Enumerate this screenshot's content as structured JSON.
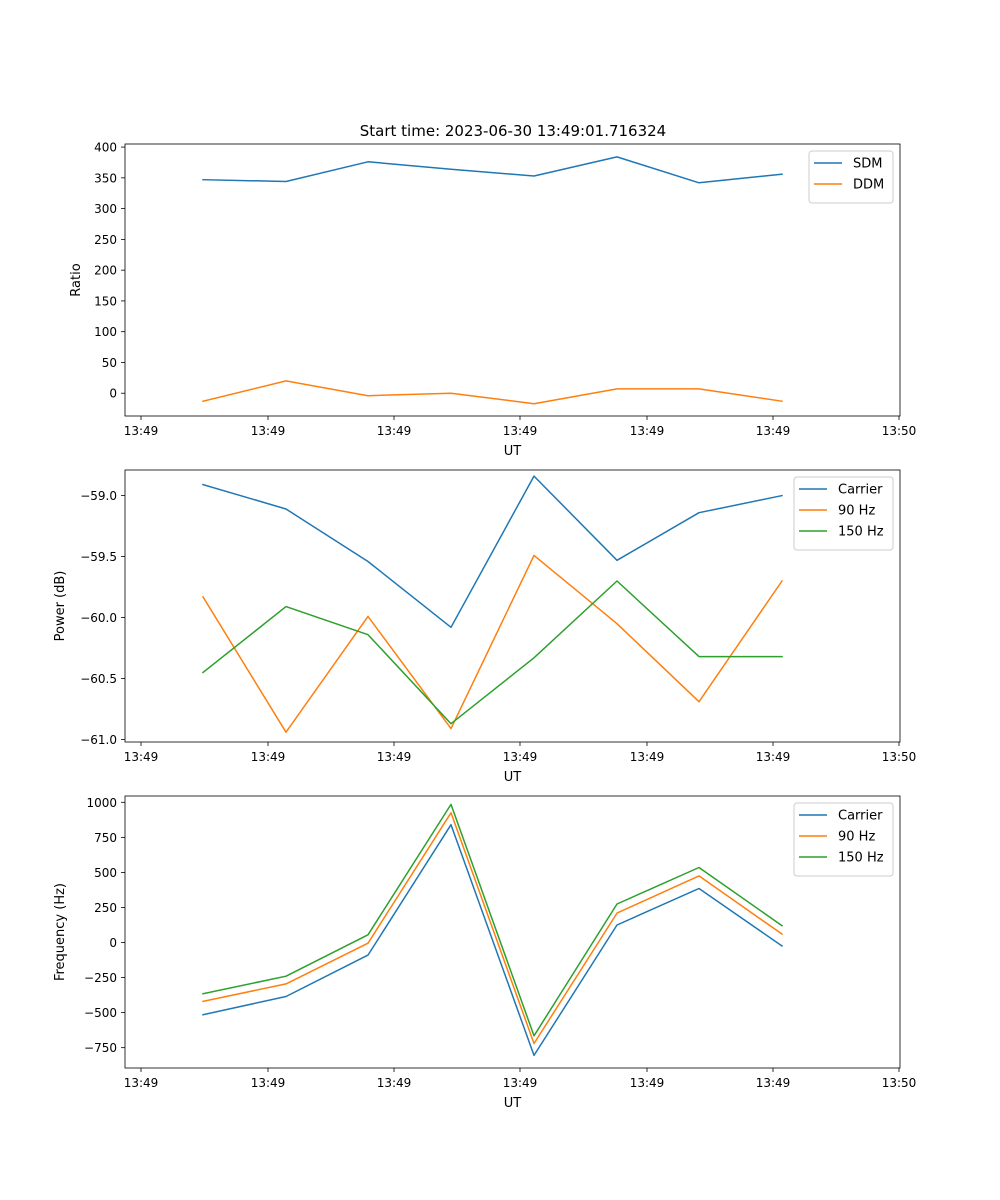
{
  "figure": {
    "title": "Start time: 2023-06-30 13:49:01.716324"
  },
  "chart_data": [
    {
      "type": "line",
      "title": "Start time: 2023-06-30 13:49:01.716324",
      "xlabel": "UT",
      "ylabel": "Ratio",
      "xticklabels": [
        "13:49",
        "13:49",
        "13:49",
        "13:49",
        "13:49",
        "13:49",
        "13:50"
      ],
      "yticks": [
        0,
        50,
        100,
        150,
        200,
        250,
        300,
        350,
        400
      ],
      "yticklabels": [
        "0",
        "50",
        "100",
        "150",
        "200",
        "250",
        "300",
        "350",
        "400"
      ],
      "ylim": [
        -37,
        405
      ],
      "legend": "top-right",
      "grid": false,
      "series": [
        {
          "name": "SDM",
          "color": "#1f77b4",
          "values": [
            347,
            344,
            376,
            364,
            353,
            384,
            342,
            356
          ]
        },
        {
          "name": "DDM",
          "color": "#ff7f0e",
          "values": [
            -13,
            20,
            -4,
            0,
            -17,
            7,
            7,
            -13
          ]
        }
      ]
    },
    {
      "type": "line",
      "xlabel": "UT",
      "ylabel": "Power (dB)",
      "xticklabels": [
        "13:49",
        "13:49",
        "13:49",
        "13:49",
        "13:49",
        "13:49",
        "13:50"
      ],
      "yticks": [
        -61.0,
        -60.5,
        -60.0,
        -59.5,
        -59.0
      ],
      "yticklabels": [
        "−61.0",
        "−60.5",
        "−60.0",
        "−59.5",
        "−59.0"
      ],
      "ylim": [
        -61.02,
        -58.79
      ],
      "legend": "top-right",
      "grid": false,
      "series": [
        {
          "name": "Carrier",
          "color": "#1f77b4",
          "values": [
            -58.91,
            -59.11,
            -59.54,
            -60.08,
            -58.84,
            -59.53,
            -59.14,
            -59.0
          ]
        },
        {
          "name": "90 Hz",
          "color": "#ff7f0e",
          "values": [
            -59.83,
            -60.94,
            -59.99,
            -60.91,
            -59.49,
            -60.05,
            -60.69,
            -59.7
          ]
        },
        {
          "name": "150 Hz",
          "color": "#2ca02c",
          "values": [
            -60.45,
            -59.91,
            -60.14,
            -60.87,
            -60.33,
            -59.7,
            -60.32,
            -60.32
          ]
        }
      ]
    },
    {
      "type": "line",
      "xlabel": "UT",
      "ylabel": "Frequency (Hz)",
      "xticklabels": [
        "13:49",
        "13:49",
        "13:49",
        "13:49",
        "13:49",
        "13:49",
        "13:50"
      ],
      "yticks": [
        -750,
        -500,
        -250,
        0,
        250,
        500,
        750,
        1000
      ],
      "yticklabels": [
        "−750",
        "−500",
        "−250",
        "0",
        "250",
        "500",
        "750",
        "1000"
      ],
      "ylim": [
        -895,
        1045
      ],
      "legend": "top-right",
      "grid": false,
      "series": [
        {
          "name": "Carrier",
          "color": "#1f77b4",
          "values": [
            -515,
            -385,
            -90,
            840,
            -805,
            125,
            385,
            -25
          ]
        },
        {
          "name": "90 Hz",
          "color": "#ff7f0e",
          "values": [
            -420,
            -295,
            -5,
            925,
            -720,
            210,
            475,
            60
          ]
        },
        {
          "name": "150 Hz",
          "color": "#2ca02c",
          "values": [
            -365,
            -240,
            55,
            985,
            -665,
            275,
            535,
            120
          ]
        }
      ]
    }
  ]
}
